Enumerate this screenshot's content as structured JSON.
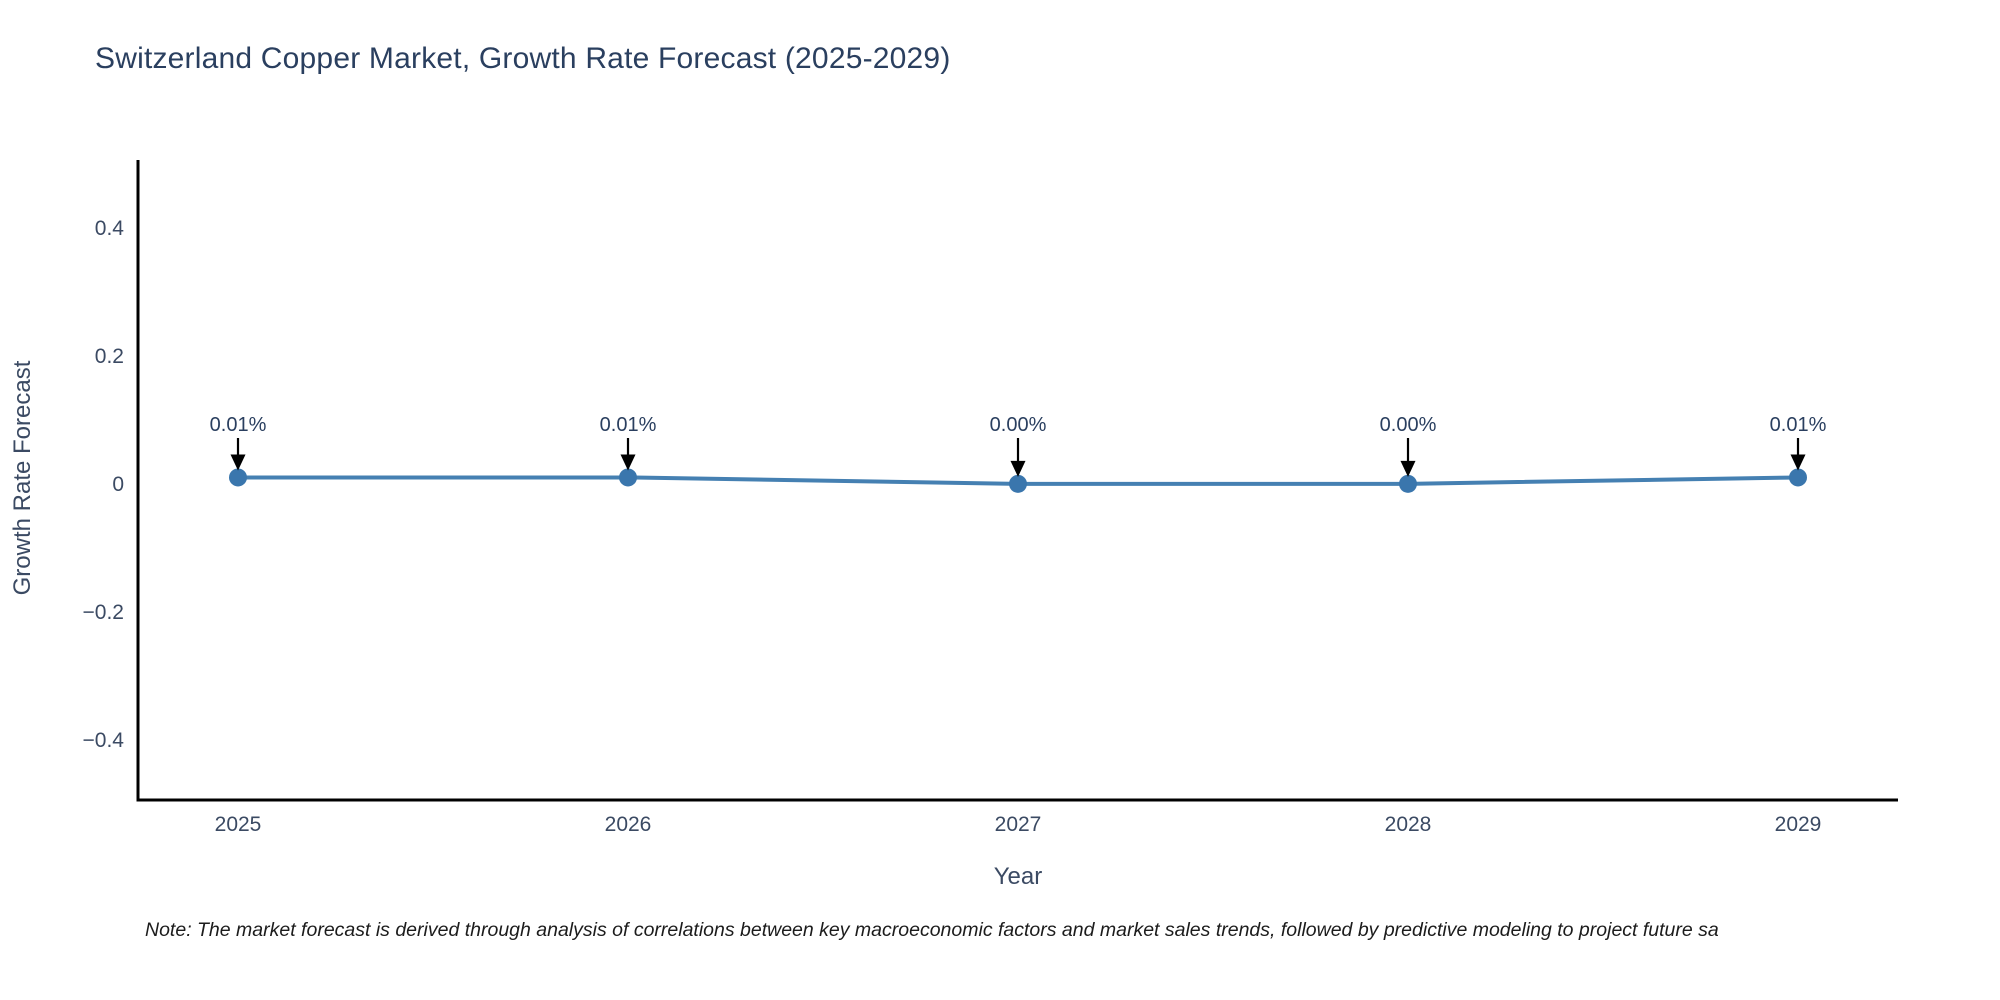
{
  "note": {
    "text": "Note: The market forecast is derived through analysis of correlations between key macroeconomic factors and market sales trends, followed by predictive modeling to project future sa"
  },
  "chart_data": {
    "type": "line",
    "title": "Switzerland Copper Market, Growth Rate Forecast (2025-2029)",
    "xlabel": "Year",
    "ylabel": "Growth Rate Forecast",
    "x": [
      2025,
      2026,
      2027,
      2028,
      2029
    ],
    "series": [
      {
        "name": "Growth Rate Forecast",
        "values": [
          0.01,
          0.01,
          0.0,
          0.0,
          0.01
        ]
      }
    ],
    "annotations": [
      "0.01%",
      "0.01%",
      "0.00%",
      "0.00%",
      "0.01%"
    ],
    "xticks": [
      "2025",
      "2026",
      "2027",
      "2028",
      "2029"
    ],
    "yticks": {
      "values": [
        0.4,
        0.2,
        0,
        -0.2,
        -0.4
      ],
      "labels": [
        "0.4",
        "0.2",
        "0",
        "−0.2",
        "−0.4"
      ]
    },
    "ylim": [
      -0.494,
      0.506
    ],
    "grid": false,
    "legend": false,
    "colors": {
      "line": "#4580b2",
      "marker": "#3a76ad",
      "arrow": "#000000",
      "axis": "#000000",
      "title_text": "#2a3f5f",
      "tick_text": "#3b4a63",
      "annotation_text": "#2a3f5f",
      "note_text": "#1c1c1c"
    }
  }
}
